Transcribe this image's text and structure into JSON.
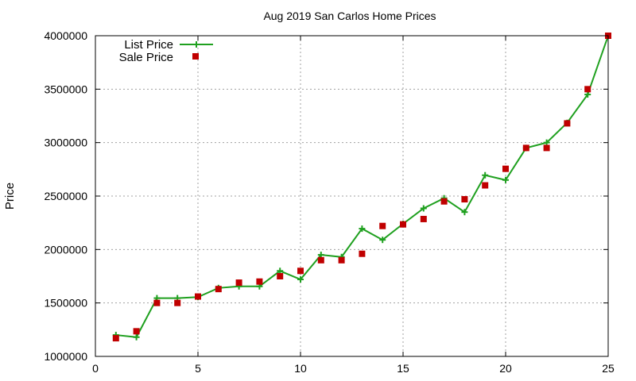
{
  "chart_data": {
    "type": "line",
    "title": "Aug 2019 San Carlos Home Prices",
    "xlabel": "",
    "ylabel": "Price",
    "xlim": [
      0,
      25
    ],
    "ylim": [
      1000000,
      4000000
    ],
    "x_ticks": [
      0,
      5,
      10,
      15,
      20,
      25
    ],
    "y_ticks": [
      1000000,
      1500000,
      2000000,
      2500000,
      3000000,
      3500000,
      4000000
    ],
    "x_tick_labels": [
      "0",
      "5",
      "10",
      "15",
      "20",
      "25"
    ],
    "y_tick_labels": [
      "1000000",
      "1500000",
      "2000000",
      "2500000",
      "3000000",
      "3500000",
      "4000000"
    ],
    "grid": true,
    "legend_position": "top-left",
    "series": [
      {
        "name": "List Price",
        "style": "line-plus",
        "color": "#1fa01f",
        "x": [
          1,
          2,
          3,
          4,
          5,
          6,
          7,
          8,
          9,
          10,
          11,
          12,
          13,
          14,
          15,
          16,
          17,
          18,
          19,
          20,
          21,
          22,
          23,
          24,
          25
        ],
        "y": [
          1200000,
          1180000,
          1545000,
          1545000,
          1555000,
          1640000,
          1655000,
          1655000,
          1800000,
          1720000,
          1950000,
          1930000,
          2195000,
          2090000,
          2240000,
          2385000,
          2480000,
          2350000,
          2695000,
          2650000,
          2950000,
          3000000,
          3185000,
          3450000,
          4000000
        ]
      },
      {
        "name": "Sale Price",
        "style": "square",
        "color": "#c00000",
        "x": [
          1,
          2,
          3,
          4,
          5,
          6,
          7,
          8,
          9,
          10,
          11,
          12,
          13,
          14,
          15,
          16,
          17,
          18,
          19,
          20,
          21,
          22,
          23,
          24,
          25
        ],
        "y": [
          1170000,
          1235000,
          1500000,
          1500000,
          1560000,
          1630000,
          1690000,
          1700000,
          1750000,
          1800000,
          1900000,
          1900000,
          1960000,
          2220000,
          2235000,
          2285000,
          2450000,
          2470000,
          2600000,
          2755000,
          2950000,
          2950000,
          3180000,
          3500000,
          4000000
        ]
      }
    ]
  }
}
